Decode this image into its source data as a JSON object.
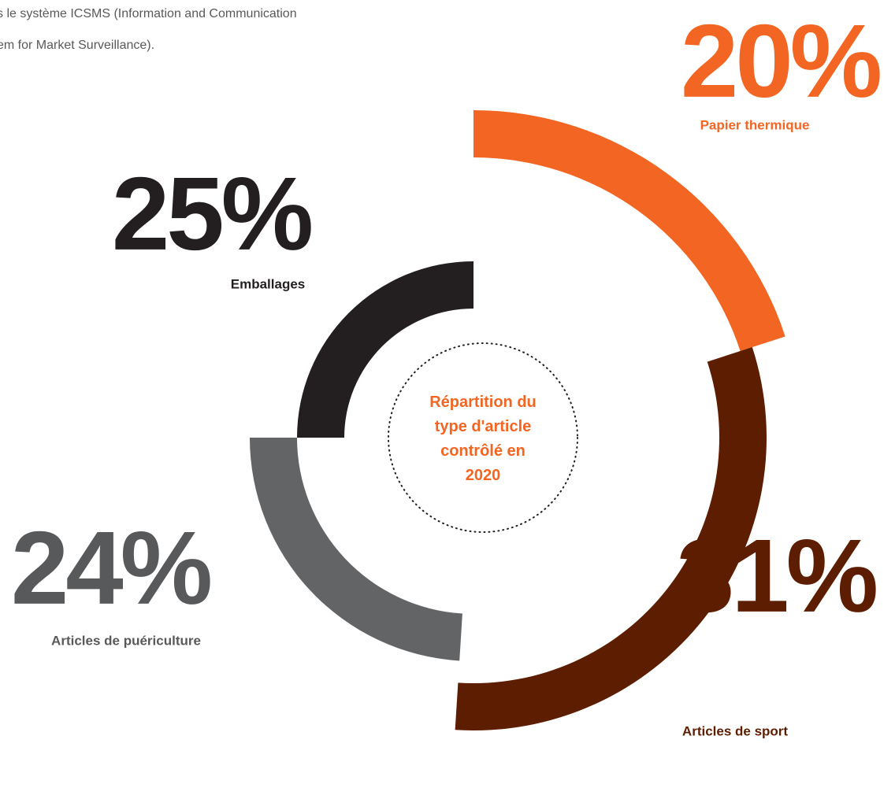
{
  "intro_text": [
    "s le système ICSMS (Information and Communication",
    "em for Market Surveillance)."
  ],
  "chart_data": {
    "type": "pie",
    "title": "Répartition du type d'article contrôlé en 2020",
    "categories": [
      "Papier thermique",
      "Articles de sport",
      "Articles de puériculture",
      "Emballages"
    ],
    "values": [
      20,
      31,
      24,
      25
    ],
    "value_labels": [
      "20%",
      "31%",
      "24%",
      "25%"
    ],
    "colors": [
      "#f26522",
      "#5c1d00",
      "#636466",
      "#231f20"
    ]
  }
}
